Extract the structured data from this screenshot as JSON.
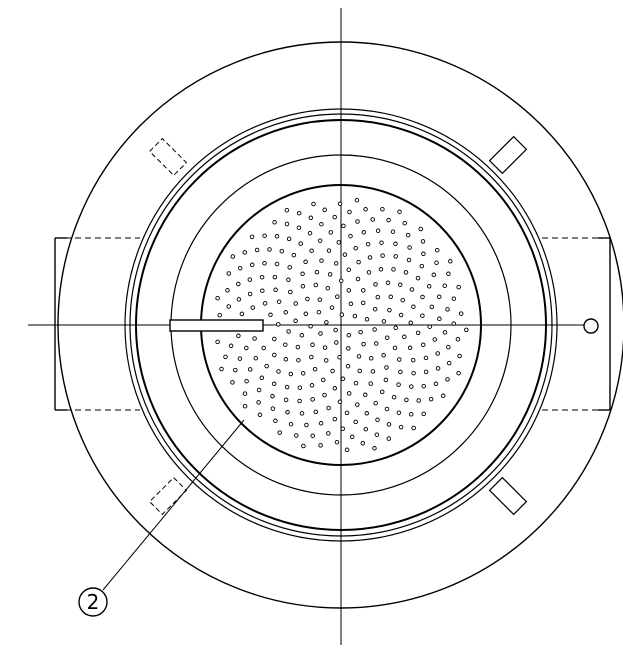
{
  "drawing": {
    "callout_label": "2",
    "line_color": "#000000",
    "background_color": "#ffffff",
    "hole_pattern": "perforated-plate"
  }
}
